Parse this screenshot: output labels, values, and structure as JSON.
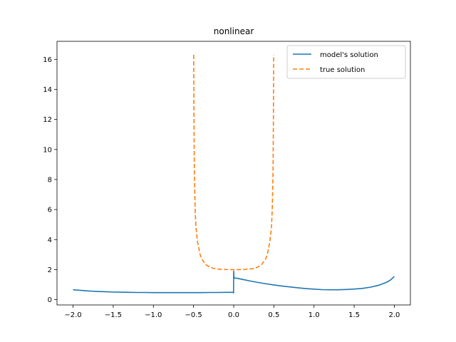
{
  "chart_data": {
    "type": "line",
    "title": "nonlinear",
    "xlabel": "",
    "ylabel": "",
    "xlim": [
      -2.2,
      2.2
    ],
    "ylim": [
      -0.35,
      17.2
    ],
    "xticks": [
      -2.0,
      -1.5,
      -1.0,
      -0.5,
      0.0,
      0.5,
      1.0,
      1.5,
      2.0
    ],
    "xtick_labels": [
      "−2.0",
      "−1.5",
      "−1.0",
      "−0.5",
      "0.0",
      "0.5",
      "1.0",
      "1.5",
      "2.0"
    ],
    "yticks": [
      0,
      2,
      4,
      6,
      8,
      10,
      12,
      14,
      16
    ],
    "ytick_labels": [
      "0",
      "2",
      "4",
      "6",
      "8",
      "10",
      "12",
      "14",
      "16"
    ],
    "grid": false,
    "legend_position": "top-right",
    "series": [
      {
        "name": "model's solution",
        "color": "#1f77b4",
        "style": "solid",
        "x": [
          -2.0,
          -1.9,
          -1.8,
          -1.7,
          -1.6,
          -1.5,
          -1.4,
          -1.3,
          -1.2,
          -1.1,
          -1.0,
          -0.9,
          -0.8,
          -0.7,
          -0.6,
          -0.5,
          -0.4,
          -0.3,
          -0.2,
          -0.1,
          -0.005,
          -0.002,
          0.0,
          0.002,
          0.005,
          0.05,
          0.1,
          0.2,
          0.3,
          0.4,
          0.5,
          0.6,
          0.7,
          0.8,
          0.9,
          1.0,
          1.1,
          1.2,
          1.3,
          1.4,
          1.5,
          1.6,
          1.7,
          1.8,
          1.9,
          1.95,
          2.0
        ],
        "y": [
          0.66,
          0.62,
          0.58,
          0.55,
          0.53,
          0.51,
          0.5,
          0.49,
          0.48,
          0.48,
          0.47,
          0.47,
          0.47,
          0.47,
          0.47,
          0.47,
          0.47,
          0.48,
          0.48,
          0.49,
          0.49,
          0.45,
          1.9,
          1.6,
          1.45,
          1.42,
          1.36,
          1.25,
          1.15,
          1.06,
          0.98,
          0.91,
          0.85,
          0.79,
          0.74,
          0.7,
          0.67,
          0.66,
          0.66,
          0.68,
          0.71,
          0.75,
          0.83,
          0.95,
          1.15,
          1.3,
          1.55
        ]
      },
      {
        "name": "true solution",
        "color": "#ff7f0e",
        "style": "dashed",
        "x": [
          -0.498,
          -0.495,
          -0.49,
          -0.48,
          -0.47,
          -0.45,
          -0.42,
          -0.4,
          -0.35,
          -0.3,
          -0.25,
          -0.2,
          -0.15,
          -0.1,
          -0.05,
          0.0,
          0.05,
          0.1,
          0.15,
          0.2,
          0.25,
          0.3,
          0.35,
          0.4,
          0.42,
          0.45,
          0.47,
          0.48,
          0.49,
          0.495,
          0.498
        ],
        "y": [
          16.3,
          12.5,
          8.6,
          6.0,
          4.8,
          3.85,
          3.05,
          2.73,
          2.35,
          2.17,
          2.08,
          2.04,
          2.02,
          2.01,
          2.0,
          2.0,
          2.0,
          2.01,
          2.02,
          2.04,
          2.08,
          2.17,
          2.35,
          2.73,
          3.05,
          3.85,
          4.8,
          6.0,
          8.6,
          12.5,
          16.3
        ]
      }
    ]
  }
}
